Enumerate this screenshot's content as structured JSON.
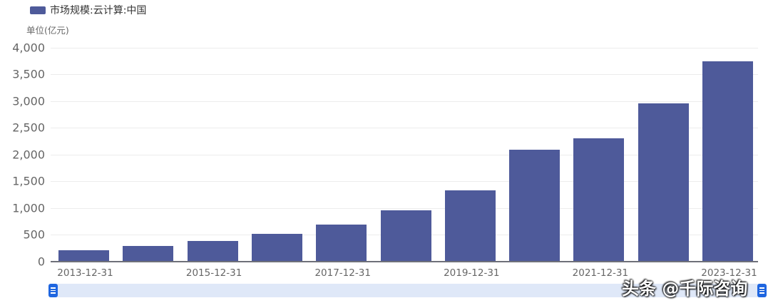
{
  "legend": {
    "label": "市场规模:云计算:中国",
    "color": "#4e5a9a"
  },
  "unit_label": "单位(亿元)",
  "y_ticks": [
    "4,000",
    "3,500",
    "3,000",
    "2,500",
    "2,000",
    "1,500",
    "1,000",
    "500",
    "0"
  ],
  "x_ticks": [
    "2013-12-31",
    "2015-12-31",
    "2017-12-31",
    "2019-12-31",
    "2021-12-31",
    "2023-12-31"
  ],
  "watermark": "头条 @千际咨询",
  "chart_data": {
    "type": "bar",
    "title": "",
    "legend": [
      "市场规模:云计算:中国"
    ],
    "legend_position": "top-left",
    "ylabel": "单位(亿元)",
    "xlabel": "",
    "ylim": [
      0,
      4000
    ],
    "grid": true,
    "categories": [
      "2013-12-31",
      "2014-12-31",
      "2015-12-31",
      "2016-12-31",
      "2017-12-31",
      "2018-12-31",
      "2019-12-31",
      "2020-12-31",
      "2021-12-31",
      "2022-12-31",
      "2023-12-31"
    ],
    "series": [
      {
        "name": "市场规模:云计算:中国",
        "color": "#4e5a9a",
        "values": [
          213,
          287,
          378,
          515,
          692,
          962,
          1334,
          2091,
          2311,
          2958,
          3750
        ]
      }
    ]
  }
}
